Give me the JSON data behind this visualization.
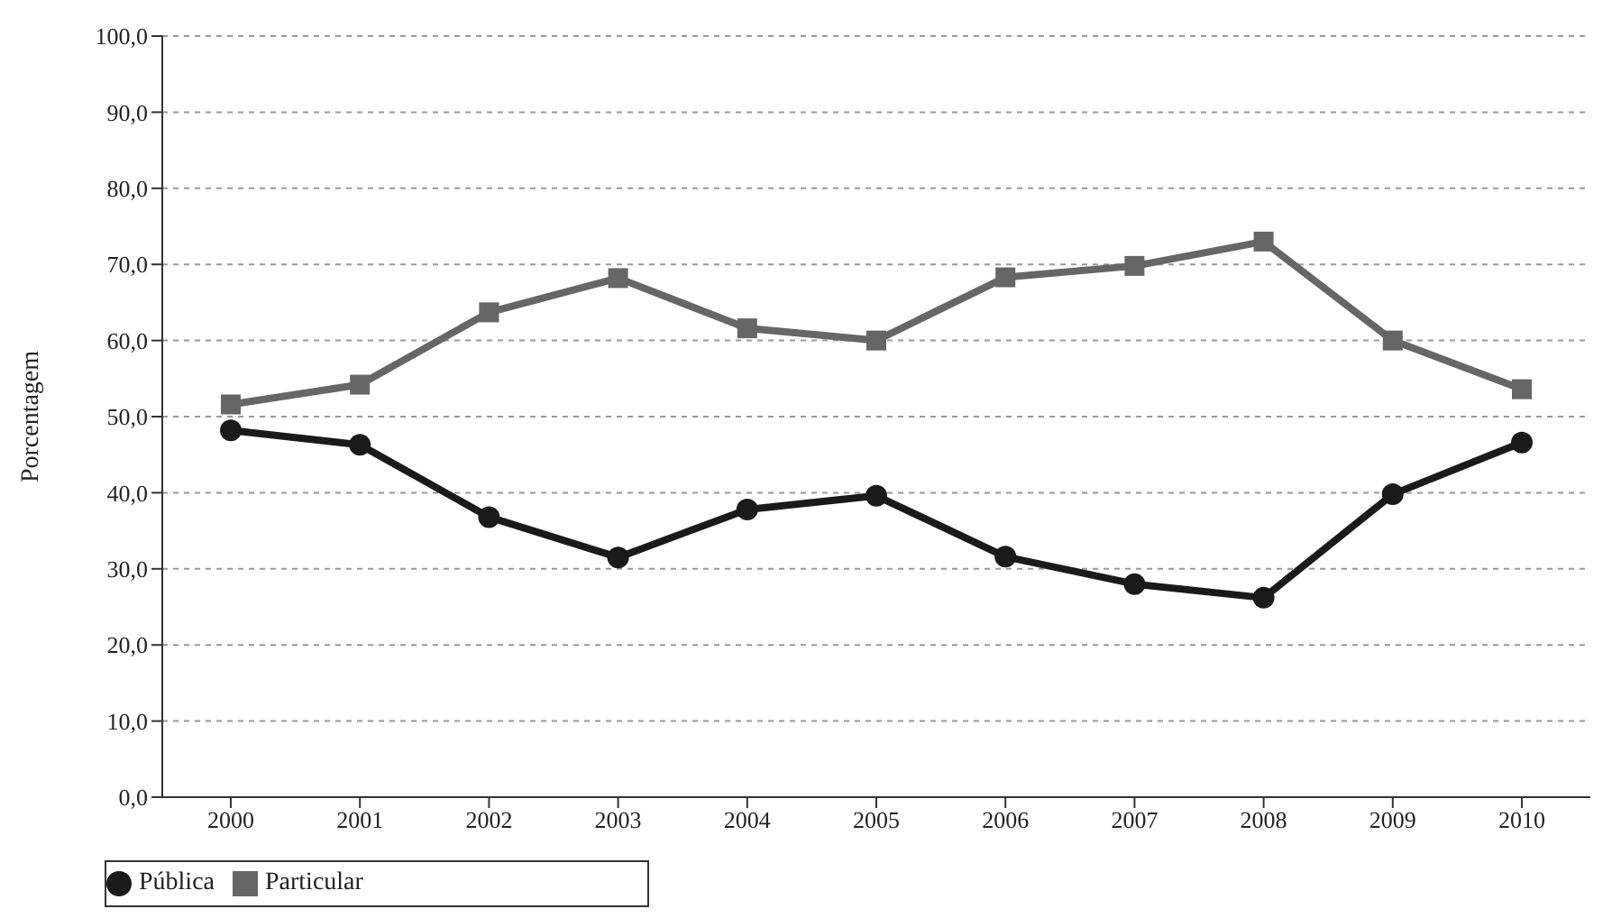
{
  "chart_data": {
    "type": "line",
    "ylabel": "Porcentagem",
    "categories": [
      "2000",
      "2001",
      "2002",
      "2003",
      "2004",
      "2005",
      "2006",
      "2007",
      "2008",
      "2009",
      "2010"
    ],
    "series": [
      {
        "name": "Pública",
        "color": "#1a1a1a",
        "marker": "circle",
        "values": [
          48.2,
          46.3,
          36.8,
          31.5,
          37.8,
          39.6,
          31.6,
          28.0,
          26.2,
          39.8,
          46.6
        ]
      },
      {
        "name": "Particular",
        "color": "#666666",
        "marker": "square",
        "values": [
          51.6,
          54.2,
          63.7,
          68.2,
          61.6,
          60.0,
          68.3,
          69.8,
          73.0,
          60.0,
          53.6
        ]
      }
    ],
    "ylim": [
      0,
      100
    ],
    "yticks": [
      {
        "value": 0,
        "label": "0,0"
      },
      {
        "value": 10,
        "label": "10,0"
      },
      {
        "value": 20,
        "label": "20,0"
      },
      {
        "value": 30,
        "label": "30,0"
      },
      {
        "value": 40,
        "label": "40,0"
      },
      {
        "value": 50,
        "label": "50,0"
      },
      {
        "value": 60,
        "label": "60,0"
      },
      {
        "value": 70,
        "label": "70,0"
      },
      {
        "value": 80,
        "label": "80,0"
      },
      {
        "value": 90,
        "label": "90,0"
      },
      {
        "value": 100,
        "label": "100,0"
      }
    ],
    "grid": "y",
    "legend": "bottom left",
    "line_style": "solid"
  }
}
